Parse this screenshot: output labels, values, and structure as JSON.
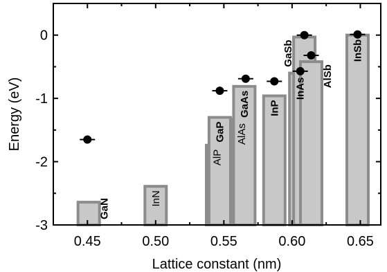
{
  "chart_data": {
    "type": "bar",
    "xlabel": "Lattice constant (nm)",
    "ylabel": "Energy (eV)",
    "xlim": [
      0.425,
      0.665
    ],
    "ylim": [
      -3,
      0.5
    ],
    "xticks": [
      0.45,
      0.5,
      0.55,
      0.6,
      0.65
    ],
    "xtick_labels": [
      "0.45",
      "0.50",
      "0.55",
      "0.60",
      "0.65"
    ],
    "yticks": [
      -3,
      -2,
      -1,
      0
    ],
    "ytick_labels": [
      "-3",
      "-2",
      "-1",
      "0"
    ],
    "bars": [
      {
        "label": "GaN",
        "bold": true,
        "x": 0.451,
        "top": -2.64
      },
      {
        "label": "InN",
        "bold": false,
        "x": 0.5,
        "top": -2.39
      },
      {
        "label": "AlP",
        "bold": false,
        "x": 0.545,
        "top": -1.74
      },
      {
        "label": "GaP",
        "bold": true,
        "x": 0.547,
        "top": -1.3
      },
      {
        "label": "AlAs",
        "bold": false,
        "x": 0.563,
        "top": -1.33
      },
      {
        "label": "GaAs",
        "bold": true,
        "x": 0.565,
        "top": -0.81
      },
      {
        "label": "InP",
        "bold": true,
        "x": 0.587,
        "top": -0.96
      },
      {
        "label": "InAs",
        "bold": true,
        "x": 0.606,
        "top": -0.6
      },
      {
        "label": "GaSb",
        "bold": true,
        "x": 0.609,
        "top": -0.03
      },
      {
        "label": "AlSb",
        "bold": true,
        "x": 0.614,
        "top": -0.42
      },
      {
        "label": "InSb",
        "bold": true,
        "x": 0.648,
        "top": 0.0
      }
    ],
    "points": [
      {
        "x": 0.45,
        "y": -1.65
      },
      {
        "x": 0.547,
        "y": -0.88
      },
      {
        "x": 0.566,
        "y": -0.69
      },
      {
        "x": 0.587,
        "y": -0.73
      },
      {
        "x": 0.606,
        "y": -0.57
      },
      {
        "x": 0.609,
        "y": 0.0
      },
      {
        "x": 0.614,
        "y": -0.32
      },
      {
        "x": 0.648,
        "y": 0.01
      }
    ],
    "colors": {
      "bar_fill": "#c8c8c8",
      "bar_stroke": "#8c8c8c",
      "point": "#000000"
    }
  }
}
